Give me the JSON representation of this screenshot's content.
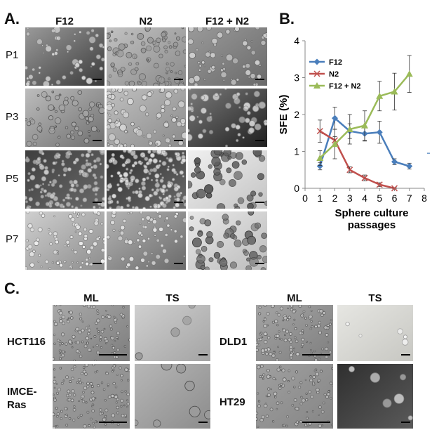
{
  "panels": {
    "a": {
      "letter": "A.",
      "columns": [
        "F12",
        "N2",
        "F12 + N2"
      ],
      "rows": [
        "P1",
        "P3",
        "P5",
        "P7"
      ]
    },
    "b": {
      "letter": "B."
    },
    "c": {
      "letter": "C.",
      "columns": [
        "ML",
        "TS",
        "ML",
        "TS"
      ],
      "cell_lines": [
        "HCT116",
        "IMCE-\nRas",
        "DLD1",
        "HT29"
      ]
    }
  },
  "chart_data": {
    "type": "line",
    "xlabel": "Sphere culture\npassages",
    "ylabel": "SFE (%)",
    "xlim": [
      0,
      8
    ],
    "ylim": [
      0,
      4
    ],
    "xticks": [
      0,
      1,
      2,
      3,
      4,
      5,
      6,
      7,
      8
    ],
    "yticks": [
      0,
      1,
      2,
      3,
      4
    ],
    "grid": false,
    "legend": "top-left",
    "series": [
      {
        "name": "F12",
        "color": "#4a7ebb",
        "marker": "diamond",
        "x": [
          1,
          2,
          3,
          4,
          5,
          6,
          7
        ],
        "y": [
          0.6,
          1.9,
          1.55,
          1.48,
          1.52,
          0.72,
          0.6
        ],
        "err": [
          0.1,
          0.3,
          0.2,
          0.2,
          0.3,
          0.08,
          0.08
        ]
      },
      {
        "name": "N2",
        "color": "#c0504d",
        "marker": "x",
        "x": [
          1,
          2,
          3,
          4,
          5,
          6
        ],
        "y": [
          1.55,
          1.3,
          0.5,
          0.28,
          0.1,
          0.0
        ],
        "err": [
          0.3,
          0.1,
          0.08,
          0.08,
          0.05,
          0.02
        ]
      },
      {
        "name": "F12 + N2",
        "color": "#9bbb59",
        "marker": "triangle",
        "x": [
          1,
          2,
          3,
          4,
          5,
          6,
          7
        ],
        "y": [
          0.82,
          1.2,
          1.6,
          1.7,
          2.5,
          2.62,
          3.1
        ],
        "err": [
          0.2,
          0.4,
          0.4,
          0.4,
          0.4,
          0.5,
          0.5
        ]
      }
    ]
  }
}
